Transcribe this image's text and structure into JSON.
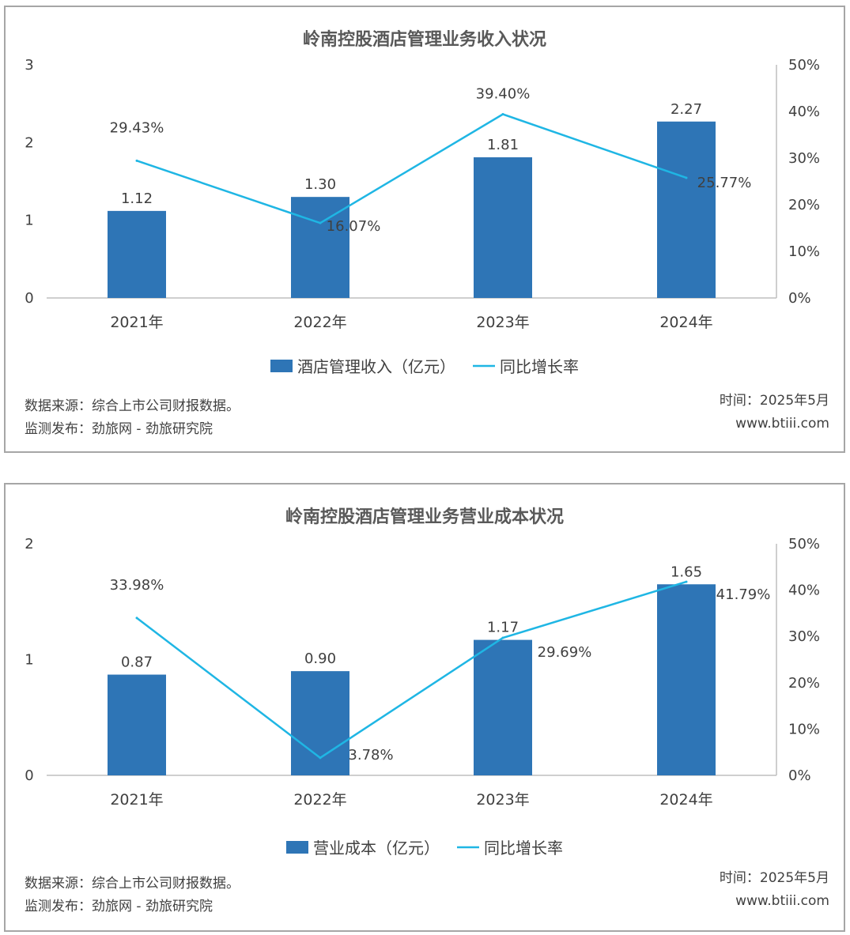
{
  "colors": {
    "bar": "#2e75b6",
    "line": "#1fb6e4",
    "axis": "#bfbfbf",
    "border": "#a6a6a6"
  },
  "charts": [
    {
      "title": "岭南控股酒店管理业务收入状况",
      "chart_data": {
        "type": "bar+line",
        "categories": [
          "2021年",
          "2022年",
          "2023年",
          "2024年"
        ],
        "series": [
          {
            "name": "酒店管理收入（亿元）",
            "type": "bar",
            "axis": "left",
            "values": [
              1.12,
              1.3,
              1.81,
              2.27
            ],
            "labels": [
              "1.12",
              "1.30",
              "1.81",
              "2.27"
            ]
          },
          {
            "name": "同比增长率",
            "type": "line",
            "axis": "right",
            "values": [
              29.43,
              16.07,
              39.4,
              25.77
            ],
            "labels": [
              "29.43%",
              "16.07%",
              "39.40%",
              "25.77%"
            ]
          }
        ],
        "left_axis": {
          "ylim": [
            0,
            3
          ],
          "ticks": [
            "0",
            "1",
            "2",
            "3"
          ]
        },
        "right_axis": {
          "ylim": [
            0,
            50
          ],
          "ticks": [
            "0%",
            "10%",
            "20%",
            "30%",
            "40%",
            "50%"
          ]
        },
        "legend": "bottom",
        "grid": false
      },
      "footer": {
        "source": "数据来源：综合上市公司财报数据。",
        "publisher": "监测发布：劲旅网 - 劲旅研究院",
        "time": "时间：2025年5月",
        "website": "www.btiii.com"
      }
    },
    {
      "title": "岭南控股酒店管理业务营业成本状况",
      "chart_data": {
        "type": "bar+line",
        "categories": [
          "2021年",
          "2022年",
          "2023年",
          "2024年"
        ],
        "series": [
          {
            "name": "营业成本（亿元）",
            "type": "bar",
            "axis": "left",
            "values": [
              0.87,
              0.9,
              1.17,
              1.65
            ],
            "labels": [
              "0.87",
              "0.90",
              "1.17",
              "1.65"
            ]
          },
          {
            "name": "同比增长率",
            "type": "line",
            "axis": "right",
            "values": [
              33.98,
              3.78,
              29.69,
              41.79
            ],
            "labels": [
              "33.98%",
              "3.78%",
              "29.69%",
              "41.79%"
            ]
          }
        ],
        "left_axis": {
          "ylim": [
            0,
            2
          ],
          "ticks": [
            "0",
            "1",
            "2"
          ]
        },
        "right_axis": {
          "ylim": [
            0,
            50
          ],
          "ticks": [
            "0%",
            "10%",
            "20%",
            "30%",
            "40%",
            "50%"
          ]
        },
        "legend": "bottom",
        "grid": false
      },
      "footer": {
        "source": "数据来源：综合上市公司财报数据。",
        "publisher": "监测发布：劲旅网 - 劲旅研究院",
        "time": "时间：2025年5月",
        "website": "www.btiii.com"
      }
    }
  ]
}
